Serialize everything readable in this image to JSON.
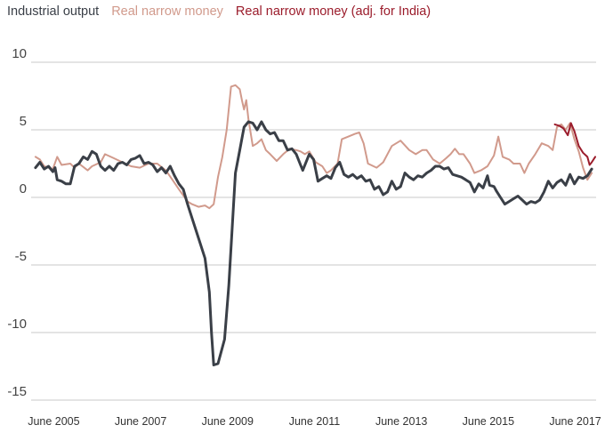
{
  "chart_data": {
    "type": "line",
    "title": "",
    "xlabel": "",
    "ylabel": "",
    "ylim": [
      -15,
      10
    ],
    "yticks": [
      10,
      5,
      0,
      -5,
      -10,
      -15
    ],
    "ytick_labels": [
      "10",
      "5",
      "0",
      "-5",
      "-10",
      "-15"
    ],
    "xrange": [
      2004.9,
      2017.9
    ],
    "xticks": [
      2005.42,
      2007.42,
      2009.42,
      2011.42,
      2013.42,
      2015.42,
      2017.42
    ],
    "xtick_labels": [
      "June 2005",
      "June 2007",
      "June 2009",
      "June 2011",
      "June 2013",
      "June 2015",
      "June 2017"
    ],
    "grid": "horizontal",
    "legend_position": "top-left",
    "series": [
      {
        "name": "Real narrow money",
        "color": "#d19a8c",
        "points": [
          [
            2005.0,
            3.0
          ],
          [
            2005.1,
            2.8
          ],
          [
            2005.2,
            2.3
          ],
          [
            2005.4,
            2.1
          ],
          [
            2005.5,
            3.0
          ],
          [
            2005.6,
            2.4
          ],
          [
            2005.8,
            2.5
          ],
          [
            2005.9,
            2.2
          ],
          [
            2006.0,
            2.5
          ],
          [
            2006.2,
            2.0
          ],
          [
            2006.3,
            2.3
          ],
          [
            2006.5,
            2.6
          ],
          [
            2006.6,
            3.2
          ],
          [
            2006.8,
            2.9
          ],
          [
            2007.0,
            2.6
          ],
          [
            2007.2,
            2.3
          ],
          [
            2007.4,
            2.2
          ],
          [
            2007.6,
            2.5
          ],
          [
            2007.8,
            2.5
          ],
          [
            2008.0,
            2.0
          ],
          [
            2008.15,
            1.3
          ],
          [
            2008.3,
            0.6
          ],
          [
            2008.5,
            -0.3
          ],
          [
            2008.6,
            -0.5
          ],
          [
            2008.75,
            -0.7
          ],
          [
            2008.9,
            -0.6
          ],
          [
            2009.0,
            -0.8
          ],
          [
            2009.1,
            -0.5
          ],
          [
            2009.2,
            1.5
          ],
          [
            2009.3,
            3.0
          ],
          [
            2009.4,
            5.0
          ],
          [
            2009.5,
            8.2
          ],
          [
            2009.6,
            8.3
          ],
          [
            2009.7,
            8.0
          ],
          [
            2009.75,
            7.2
          ],
          [
            2009.8,
            6.5
          ],
          [
            2009.85,
            7.2
          ],
          [
            2009.9,
            5.8
          ],
          [
            2010.0,
            3.8
          ],
          [
            2010.1,
            4.0
          ],
          [
            2010.2,
            4.3
          ],
          [
            2010.3,
            3.5
          ],
          [
            2010.4,
            3.2
          ],
          [
            2010.55,
            2.7
          ],
          [
            2010.7,
            3.2
          ],
          [
            2010.85,
            3.6
          ],
          [
            2011.0,
            3.5
          ],
          [
            2011.1,
            3.4
          ],
          [
            2011.2,
            3.2
          ],
          [
            2011.3,
            3.4
          ],
          [
            2011.45,
            2.6
          ],
          [
            2011.6,
            2.3
          ],
          [
            2011.7,
            1.8
          ],
          [
            2011.8,
            2.0
          ],
          [
            2011.95,
            2.5
          ],
          [
            2012.05,
            4.3
          ],
          [
            2012.2,
            4.5
          ],
          [
            2012.35,
            4.7
          ],
          [
            2012.45,
            4.8
          ],
          [
            2012.55,
            4.0
          ],
          [
            2012.65,
            2.5
          ],
          [
            2012.85,
            2.2
          ],
          [
            2013.0,
            2.6
          ],
          [
            2013.2,
            3.8
          ],
          [
            2013.4,
            4.2
          ],
          [
            2013.6,
            3.5
          ],
          [
            2013.75,
            3.2
          ],
          [
            2013.9,
            3.5
          ],
          [
            2014.0,
            3.5
          ],
          [
            2014.15,
            2.8
          ],
          [
            2014.3,
            2.5
          ],
          [
            2014.45,
            2.9
          ],
          [
            2014.55,
            3.2
          ],
          [
            2014.65,
            3.6
          ],
          [
            2014.75,
            3.2
          ],
          [
            2014.85,
            3.2
          ],
          [
            2015.0,
            2.5
          ],
          [
            2015.1,
            1.8
          ],
          [
            2015.25,
            2.0
          ],
          [
            2015.4,
            2.3
          ],
          [
            2015.55,
            3.1
          ],
          [
            2015.65,
            4.5
          ],
          [
            2015.75,
            3.0
          ],
          [
            2015.9,
            2.8
          ],
          [
            2016.0,
            2.5
          ],
          [
            2016.15,
            2.5
          ],
          [
            2016.25,
            1.8
          ],
          [
            2016.35,
            2.5
          ],
          [
            2016.5,
            3.2
          ],
          [
            2016.65,
            4.0
          ],
          [
            2016.8,
            3.8
          ],
          [
            2016.9,
            3.5
          ],
          [
            2017.0,
            5.2
          ],
          [
            2017.1,
            5.4
          ],
          [
            2017.2,
            5.0
          ],
          [
            2017.3,
            5.5
          ],
          [
            2017.4,
            4.3
          ],
          [
            2017.5,
            3.4
          ],
          [
            2017.6,
            2.2
          ],
          [
            2017.7,
            1.3
          ],
          [
            2017.8,
            1.8
          ]
        ]
      },
      {
        "name": "Real narrow money (adj. for India)",
        "color": "#9b1c2b",
        "points": [
          [
            2016.95,
            5.4
          ],
          [
            2017.05,
            5.3
          ],
          [
            2017.15,
            5.1
          ],
          [
            2017.25,
            4.6
          ],
          [
            2017.32,
            5.5
          ],
          [
            2017.4,
            4.9
          ],
          [
            2017.5,
            3.8
          ],
          [
            2017.6,
            3.3
          ],
          [
            2017.7,
            3.0
          ],
          [
            2017.75,
            2.4
          ],
          [
            2017.8,
            2.6
          ],
          [
            2017.88,
            3.0
          ]
        ]
      },
      {
        "name": "Industrial output",
        "color": "#3a3f47",
        "points": [
          [
            2005.0,
            2.2
          ],
          [
            2005.1,
            2.6
          ],
          [
            2005.2,
            2.1
          ],
          [
            2005.3,
            2.3
          ],
          [
            2005.4,
            1.9
          ],
          [
            2005.45,
            2.2
          ],
          [
            2005.5,
            1.3
          ],
          [
            2005.6,
            1.2
          ],
          [
            2005.7,
            1.0
          ],
          [
            2005.8,
            1.0
          ],
          [
            2005.9,
            2.3
          ],
          [
            2006.0,
            2.5
          ],
          [
            2006.1,
            3.0
          ],
          [
            2006.2,
            2.8
          ],
          [
            2006.3,
            3.4
          ],
          [
            2006.4,
            3.2
          ],
          [
            2006.5,
            2.3
          ],
          [
            2006.6,
            2.0
          ],
          [
            2006.7,
            2.3
          ],
          [
            2006.8,
            2.0
          ],
          [
            2006.9,
            2.5
          ],
          [
            2007.0,
            2.6
          ],
          [
            2007.1,
            2.4
          ],
          [
            2007.2,
            2.8
          ],
          [
            2007.3,
            2.9
          ],
          [
            2007.4,
            3.1
          ],
          [
            2007.5,
            2.5
          ],
          [
            2007.6,
            2.6
          ],
          [
            2007.7,
            2.4
          ],
          [
            2007.8,
            1.9
          ],
          [
            2007.9,
            2.2
          ],
          [
            2008.0,
            1.8
          ],
          [
            2008.1,
            2.3
          ],
          [
            2008.2,
            1.6
          ],
          [
            2008.3,
            1.0
          ],
          [
            2008.4,
            0.6
          ],
          [
            2008.5,
            -0.5
          ],
          [
            2008.6,
            -1.5
          ],
          [
            2008.7,
            -2.5
          ],
          [
            2008.8,
            -3.5
          ],
          [
            2008.9,
            -4.5
          ],
          [
            2009.0,
            -7.0
          ],
          [
            2009.05,
            -10.0
          ],
          [
            2009.1,
            -12.4
          ],
          [
            2009.2,
            -12.3
          ],
          [
            2009.35,
            -10.5
          ],
          [
            2009.45,
            -6.5
          ],
          [
            2009.55,
            -1.0
          ],
          [
            2009.6,
            1.8
          ],
          [
            2009.7,
            3.5
          ],
          [
            2009.8,
            5.2
          ],
          [
            2009.9,
            5.6
          ],
          [
            2010.0,
            5.5
          ],
          [
            2010.1,
            5.0
          ],
          [
            2010.2,
            5.6
          ],
          [
            2010.3,
            5.0
          ],
          [
            2010.4,
            4.7
          ],
          [
            2010.5,
            4.8
          ],
          [
            2010.6,
            4.2
          ],
          [
            2010.7,
            4.2
          ],
          [
            2010.8,
            3.5
          ],
          [
            2010.9,
            3.6
          ],
          [
            2011.0,
            3.2
          ],
          [
            2011.1,
            2.4
          ],
          [
            2011.15,
            2.0
          ],
          [
            2011.3,
            3.2
          ],
          [
            2011.4,
            2.8
          ],
          [
            2011.5,
            1.2
          ],
          [
            2011.6,
            1.4
          ],
          [
            2011.7,
            1.6
          ],
          [
            2011.8,
            1.4
          ],
          [
            2011.9,
            2.2
          ],
          [
            2012.0,
            2.6
          ],
          [
            2012.1,
            1.7
          ],
          [
            2012.2,
            1.5
          ],
          [
            2012.3,
            1.7
          ],
          [
            2012.4,
            1.4
          ],
          [
            2012.5,
            1.6
          ],
          [
            2012.6,
            1.2
          ],
          [
            2012.7,
            1.3
          ],
          [
            2012.8,
            0.6
          ],
          [
            2012.9,
            0.8
          ],
          [
            2013.0,
            0.2
          ],
          [
            2013.1,
            0.4
          ],
          [
            2013.2,
            1.2
          ],
          [
            2013.3,
            0.6
          ],
          [
            2013.4,
            0.8
          ],
          [
            2013.5,
            1.8
          ],
          [
            2013.6,
            1.5
          ],
          [
            2013.7,
            1.3
          ],
          [
            2013.8,
            1.6
          ],
          [
            2013.9,
            1.5
          ],
          [
            2014.0,
            1.8
          ],
          [
            2014.1,
            2.0
          ],
          [
            2014.2,
            2.3
          ],
          [
            2014.3,
            2.3
          ],
          [
            2014.4,
            2.1
          ],
          [
            2014.5,
            2.2
          ],
          [
            2014.6,
            1.7
          ],
          [
            2014.7,
            1.6
          ],
          [
            2014.8,
            1.5
          ],
          [
            2014.9,
            1.3
          ],
          [
            2015.0,
            1.1
          ],
          [
            2015.1,
            0.4
          ],
          [
            2015.2,
            1.0
          ],
          [
            2015.3,
            0.7
          ],
          [
            2015.4,
            1.6
          ],
          [
            2015.45,
            0.9
          ],
          [
            2015.55,
            0.8
          ],
          [
            2015.6,
            0.5
          ],
          [
            2015.7,
            0.0
          ],
          [
            2015.8,
            -0.5
          ],
          [
            2015.9,
            -0.3
          ],
          [
            2016.0,
            -0.1
          ],
          [
            2016.1,
            0.1
          ],
          [
            2016.2,
            -0.2
          ],
          [
            2016.3,
            -0.5
          ],
          [
            2016.4,
            -0.3
          ],
          [
            2016.5,
            -0.4
          ],
          [
            2016.6,
            -0.2
          ],
          [
            2016.7,
            0.4
          ],
          [
            2016.8,
            1.2
          ],
          [
            2016.9,
            0.7
          ],
          [
            2017.0,
            1.1
          ],
          [
            2017.1,
            1.3
          ],
          [
            2017.2,
            0.9
          ],
          [
            2017.3,
            1.7
          ],
          [
            2017.4,
            1.0
          ],
          [
            2017.5,
            1.5
          ],
          [
            2017.6,
            1.4
          ],
          [
            2017.7,
            1.6
          ],
          [
            2017.8,
            2.1
          ]
        ]
      }
    ]
  }
}
